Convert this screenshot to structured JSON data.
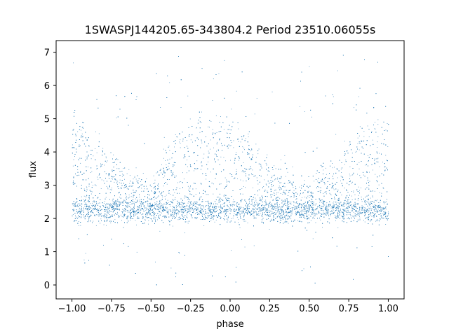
{
  "chart_data": {
    "type": "scatter",
    "title": "1SWASPJ144205.65-343804.2 Period 23510.06055s",
    "xlabel": "phase",
    "ylabel": "flux",
    "xlim": [
      -1.1,
      1.1
    ],
    "ylim": [
      -0.42,
      7.35
    ],
    "x_ticks": [
      -1.0,
      -0.75,
      -0.5,
      -0.25,
      0.0,
      0.25,
      0.5,
      0.75,
      1.0
    ],
    "x_tick_labels": [
      "−1.00",
      "−0.75",
      "−0.50",
      "−0.25",
      "0.00",
      "0.25",
      "0.50",
      "0.75",
      "1.00"
    ],
    "y_ticks": [
      0,
      1,
      2,
      3,
      4,
      5,
      6,
      7
    ],
    "y_tick_labels": [
      "0",
      "1",
      "2",
      "3",
      "4",
      "5",
      "6",
      "7"
    ],
    "grid": false,
    "point_color": "#1f77b4",
    "series": [
      {
        "description": "dense band of folded light-curve points",
        "baseline_flux": 2.25,
        "baseline_spread": 0.18,
        "upper_envelope": [
          {
            "x": -1.0,
            "y": 5.0
          },
          {
            "x": -0.85,
            "y": 4.2
          },
          {
            "x": -0.75,
            "y": 3.7
          },
          {
            "x": -0.5,
            "y": 2.9
          },
          {
            "x": -0.3,
            "y": 4.8
          },
          {
            "x": -0.2,
            "y": 4.9
          },
          {
            "x": 0.0,
            "y": 5.0
          },
          {
            "x": 0.25,
            "y": 3.5
          },
          {
            "x": 0.5,
            "y": 2.9
          },
          {
            "x": 0.7,
            "y": 3.8
          },
          {
            "x": 0.85,
            "y": 4.8
          },
          {
            "x": 1.0,
            "y": 5.0
          }
        ],
        "outlier_range": [
          0.0,
          7.0
        ]
      }
    ]
  }
}
